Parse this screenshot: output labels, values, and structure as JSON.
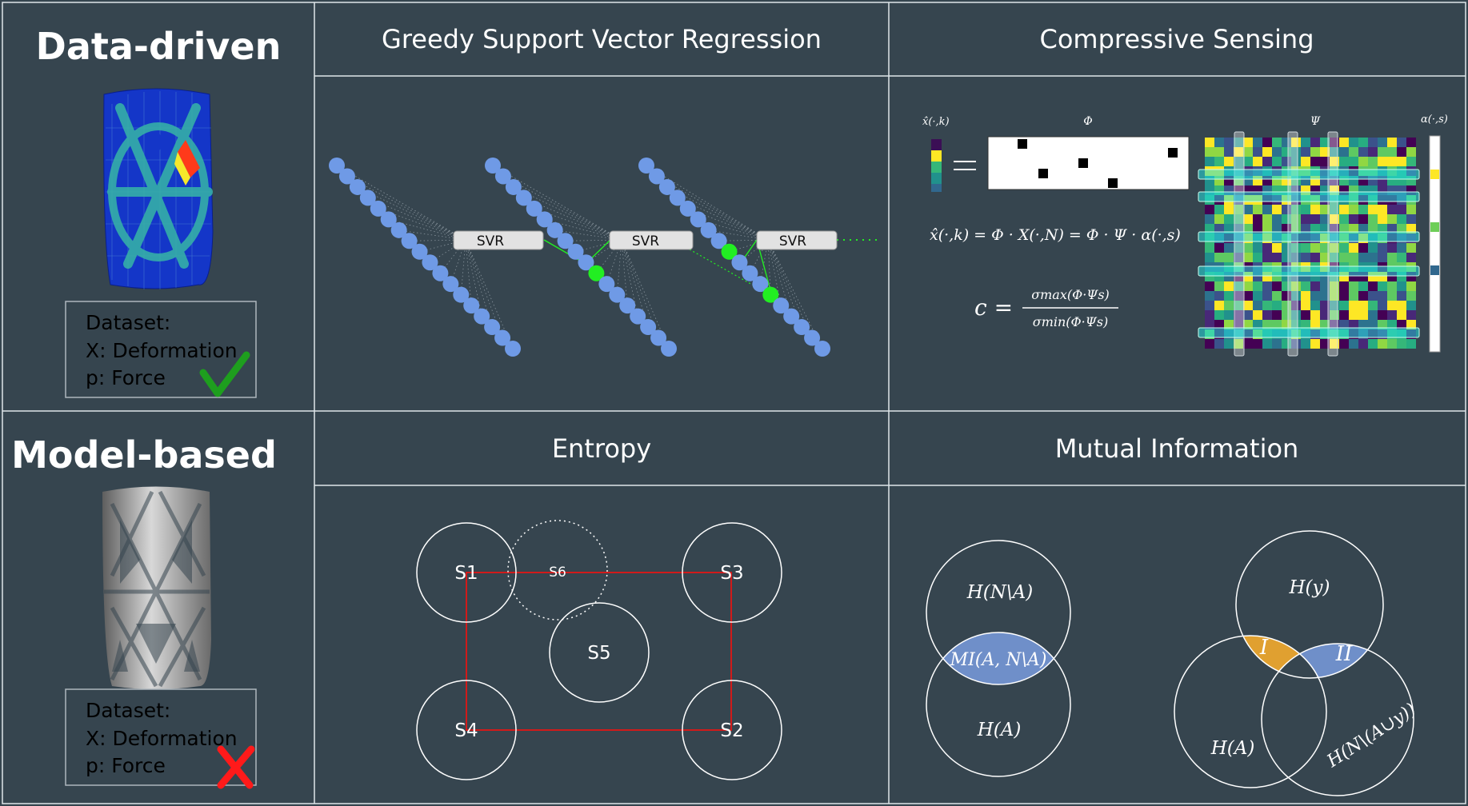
{
  "rows": [
    {
      "title": "Data-driven",
      "dataset_lines": [
        "Dataset:",
        "X: Deformation",
        "p: Force"
      ],
      "status": "check",
      "status_color": "#1e9e1e"
    },
    {
      "title": "Model-based",
      "dataset_lines": [
        "Dataset:",
        "X: Deformation",
        "p: Force"
      ],
      "status": "cross",
      "status_color": "#ff1a1a"
    }
  ],
  "panels": {
    "gsvr": {
      "title": "Greedy Support Vector Regression",
      "box_label": "SVR"
    },
    "cs": {
      "title": "Compressive Sensing",
      "label_xhat": "x̂(·,k)",
      "label_phi": "Φ",
      "label_psi": "Ψ",
      "label_alpha": "α(·,s)",
      "equation_1": "x̂(·,k) = Φ · X(·,N) = Φ · Ψ · α(·,s)",
      "equation_2_lhs": "c =",
      "equation_2_num": "σmax(Φ·Ψs)",
      "equation_2_den": "σmin(Φ·Ψs)"
    },
    "entropy": {
      "title": "Entropy",
      "sensors": [
        "S1",
        "S6",
        "S3",
        "S5",
        "S4",
        "S2"
      ]
    },
    "mi": {
      "title": "Mutual Information",
      "left_top": "H(N\\A)",
      "left_overlap": "MI(A, N\\A)",
      "left_bottom": "H(A)",
      "right_top": "H(y)",
      "region_1": "I",
      "region_2": "II",
      "right_left": "H(A)",
      "right_right": "H(N\\(A∪y))"
    }
  },
  "colors": {
    "background": "#36454f",
    "grid_line": "#dfe6ea",
    "node": "#6f9ae6",
    "selected_node": "#22ee22",
    "svr_box": "#e2e2e2",
    "red_link": "#d11a1a",
    "mi_blue": "#6f8fc9",
    "mi_orange": "#e0a030",
    "mesh_blue": "#1436c8",
    "mesh_teal": "#37b5a6",
    "model_gray": "#9a9a9a"
  }
}
